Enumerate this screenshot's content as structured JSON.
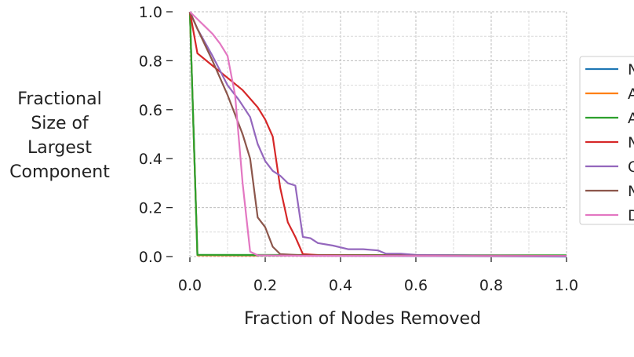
{
  "chart_data": {
    "type": "line",
    "xlabel": "Fraction of Nodes Removed",
    "ylabel_lines": [
      "Fractional",
      "Size of",
      "Largest",
      "Component"
    ],
    "xlim": [
      0,
      1
    ],
    "ylim": [
      0,
      1
    ],
    "x_ticks": [
      "0.0",
      "0.2",
      "0.4",
      "0.6",
      "0.8",
      "1.0"
    ],
    "y_ticks": [
      "0.0",
      "0.2",
      "0.4",
      "0.6",
      "0.8",
      "1.0"
    ],
    "grid": true,
    "legend_position": "right",
    "legend_labels": [
      "N",
      "A",
      "A",
      "N",
      "C",
      "N",
      "D"
    ],
    "series": [
      {
        "name": "N",
        "color": "#1f77b4",
        "x": [
          0.0,
          0.02,
          1.0
        ],
        "y": [
          1.0,
          0.005,
          0.0
        ]
      },
      {
        "name": "A",
        "color": "#ff7f0e",
        "x": [
          0.0,
          0.02,
          0.5,
          1.0
        ],
        "y": [
          1.0,
          0.005,
          0.004,
          0.003
        ]
      },
      {
        "name": "A",
        "color": "#2ca02c",
        "x": [
          0.0,
          0.02,
          0.5,
          1.0
        ],
        "y": [
          1.0,
          0.007,
          0.006,
          0.005
        ]
      },
      {
        "name": "N",
        "color": "#d62728",
        "x": [
          0.0,
          0.02,
          0.06,
          0.1,
          0.14,
          0.18,
          0.2,
          0.22,
          0.24,
          0.26,
          0.28,
          0.3,
          0.34,
          0.4,
          0.6,
          1.0
        ],
        "y": [
          1.0,
          0.83,
          0.78,
          0.73,
          0.68,
          0.61,
          0.56,
          0.49,
          0.28,
          0.14,
          0.08,
          0.01,
          0.006,
          0.005,
          0.004,
          0.003
        ]
      },
      {
        "name": "C",
        "color": "#9467bd",
        "x": [
          0.0,
          0.02,
          0.06,
          0.1,
          0.13,
          0.16,
          0.18,
          0.2,
          0.22,
          0.24,
          0.26,
          0.28,
          0.3,
          0.32,
          0.34,
          0.38,
          0.42,
          0.46,
          0.5,
          0.52,
          0.56,
          0.6,
          0.7,
          0.8,
          1.0
        ],
        "y": [
          1.0,
          0.93,
          0.82,
          0.7,
          0.64,
          0.57,
          0.46,
          0.39,
          0.35,
          0.33,
          0.3,
          0.29,
          0.08,
          0.075,
          0.055,
          0.045,
          0.03,
          0.03,
          0.025,
          0.012,
          0.012,
          0.007,
          0.005,
          0.004,
          0.002
        ]
      },
      {
        "name": "N",
        "color": "#8c564b",
        "x": [
          0.0,
          0.02,
          0.06,
          0.1,
          0.14,
          0.16,
          0.18,
          0.2,
          0.22,
          0.24,
          0.3,
          0.5,
          1.0
        ],
        "y": [
          1.0,
          0.93,
          0.8,
          0.66,
          0.5,
          0.4,
          0.16,
          0.12,
          0.04,
          0.01,
          0.005,
          0.004,
          0.003
        ]
      },
      {
        "name": "D",
        "color": "#e377c2",
        "x": [
          0.0,
          0.02,
          0.04,
          0.06,
          0.08,
          0.1,
          0.12,
          0.14,
          0.16,
          0.18,
          0.3,
          1.0
        ],
        "y": [
          1.0,
          0.97,
          0.94,
          0.91,
          0.87,
          0.82,
          0.66,
          0.3,
          0.02,
          0.005,
          0.003,
          0.002
        ]
      }
    ]
  }
}
